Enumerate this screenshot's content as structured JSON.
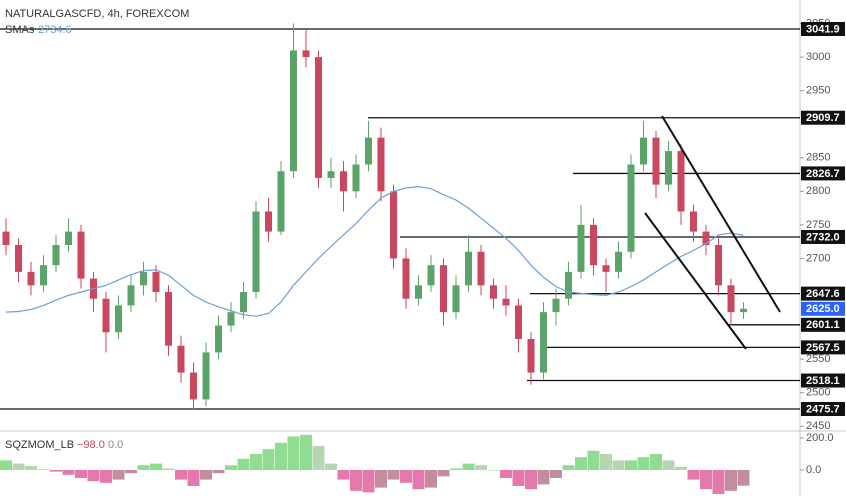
{
  "chart_data": {
    "type": "candlestick",
    "title": "NATURALGASCFD, 4h, FOREXCOM",
    "ylim": [
      2444.4,
      3085.1
    ],
    "yticks": [
      3050,
      3000,
      2950,
      2850,
      2800,
      2750,
      2700,
      2550,
      2500,
      2450
    ],
    "up_color": "#5aa469",
    "down_color": "#c9485f",
    "candles": [
      [
        2740,
        2760,
        2705,
        2720
      ],
      [
        2720,
        2730,
        2665,
        2680
      ],
      [
        2680,
        2695,
        2645,
        2660
      ],
      [
        2660,
        2705,
        2650,
        2690
      ],
      [
        2690,
        2735,
        2680,
        2720
      ],
      [
        2720,
        2760,
        2710,
        2740
      ],
      [
        2740,
        2750,
        2655,
        2670
      ],
      [
        2670,
        2680,
        2620,
        2640
      ],
      [
        2640,
        2650,
        2560,
        2590
      ],
      [
        2590,
        2645,
        2580,
        2630
      ],
      [
        2630,
        2675,
        2620,
        2660
      ],
      [
        2660,
        2695,
        2645,
        2680
      ],
      [
        2680,
        2690,
        2635,
        2650
      ],
      [
        2650,
        2660,
        2555,
        2570
      ],
      [
        2570,
        2585,
        2515,
        2530
      ],
      [
        2530,
        2545,
        2475,
        2490
      ],
      [
        2490,
        2575,
        2480,
        2560
      ],
      [
        2560,
        2615,
        2550,
        2600
      ],
      [
        2600,
        2635,
        2590,
        2620
      ],
      [
        2620,
        2665,
        2610,
        2650
      ],
      [
        2650,
        2785,
        2640,
        2770
      ],
      [
        2770,
        2790,
        2725,
        2740
      ],
      [
        2740,
        2845,
        2735,
        2830
      ],
      [
        2830,
        3050,
        2820,
        3010
      ],
      [
        3010,
        3040,
        2985,
        3000
      ],
      [
        3000,
        3010,
        2805,
        2820
      ],
      [
        2820,
        2850,
        2805,
        2830
      ],
      [
        2830,
        2845,
        2770,
        2800
      ],
      [
        2800,
        2855,
        2790,
        2840
      ],
      [
        2840,
        2905,
        2830,
        2880
      ],
      [
        2880,
        2895,
        2785,
        2800
      ],
      [
        2800,
        2810,
        2685,
        2700
      ],
      [
        2700,
        2715,
        2625,
        2640
      ],
      [
        2640,
        2675,
        2630,
        2660
      ],
      [
        2660,
        2705,
        2650,
        2690
      ],
      [
        2690,
        2700,
        2600,
        2620
      ],
      [
        2620,
        2675,
        2610,
        2660
      ],
      [
        2660,
        2735,
        2650,
        2710
      ],
      [
        2710,
        2720,
        2645,
        2660
      ],
      [
        2660,
        2670,
        2625,
        2640
      ],
      [
        2640,
        2660,
        2615,
        2630
      ],
      [
        2630,
        2640,
        2560,
        2580
      ],
      [
        2580,
        2590,
        2512,
        2530
      ],
      [
        2530,
        2635,
        2520,
        2620
      ],
      [
        2620,
        2655,
        2600,
        2640
      ],
      [
        2640,
        2695,
        2630,
        2680
      ],
      [
        2680,
        2780,
        2670,
        2750
      ],
      [
        2750,
        2760,
        2675,
        2690
      ],
      [
        2690,
        2700,
        2650,
        2680
      ],
      [
        2680,
        2725,
        2670,
        2710
      ],
      [
        2710,
        2855,
        2700,
        2840
      ],
      [
        2840,
        2905,
        2830,
        2880
      ],
      [
        2880,
        2890,
        2790,
        2810
      ],
      [
        2810,
        2875,
        2800,
        2860
      ],
      [
        2860,
        2870,
        2750,
        2770
      ],
      [
        2770,
        2780,
        2725,
        2740
      ],
      [
        2740,
        2750,
        2705,
        2720
      ],
      [
        2720,
        2730,
        2645,
        2660
      ],
      [
        2660,
        2670,
        2600,
        2620
      ],
      [
        2620,
        2635,
        2610,
        2625
      ]
    ],
    "sma": {
      "name": "SMAs",
      "color": "#6f9fd8",
      "values": [
        2620,
        2621,
        2624,
        2630,
        2638,
        2645,
        2650,
        2655,
        2660,
        2668,
        2676,
        2682,
        2683,
        2675,
        2660,
        2645,
        2635,
        2628,
        2622,
        2616,
        2614,
        2618,
        2635,
        2660,
        2680,
        2700,
        2718,
        2735,
        2752,
        2772,
        2790,
        2800,
        2805,
        2807,
        2804,
        2795,
        2787,
        2775,
        2760,
        2745,
        2730,
        2712,
        2690,
        2672,
        2658,
        2650,
        2648,
        2646,
        2645,
        2650,
        2658,
        2668,
        2680,
        2692,
        2703,
        2712,
        2722,
        2735,
        2738,
        2734.6
      ]
    },
    "levels": [
      3041.9,
      2909.7,
      2826.7,
      {
        "value": 2732,
        "label": "2732.0"
      },
      2647.6,
      2601.1,
      2567.5,
      2518.1,
      2475.7
    ],
    "last_price": {
      "value": 2625,
      "label": "2625.0",
      "color": "#2962ff"
    },
    "indicator": {
      "name": "SQZMOM_LB",
      "legend_values": [
        "−98.0",
        "0.0"
      ],
      "ylim": [
        -162.5,
        237.5
      ],
      "yticks": [
        {
          "value": 200,
          "label": "200.0"
        },
        {
          "value": 0,
          "label": "0.0"
        }
      ],
      "colors": [
        "#7cd67c",
        "#a9cfa3",
        "#e0609e",
        "#b9788e"
      ],
      "values": [
        60,
        40,
        25,
        5,
        -10,
        -30,
        -50,
        -70,
        -80,
        -60,
        -20,
        30,
        40,
        10,
        -60,
        -100,
        -60,
        -20,
        30,
        70,
        100,
        130,
        170,
        210,
        220,
        150,
        40,
        -60,
        -130,
        -140,
        -110,
        -60,
        -80,
        -120,
        -110,
        -40,
        10,
        40,
        30,
        0,
        -50,
        -100,
        -120,
        -90,
        -50,
        30,
        80,
        120,
        100,
        60,
        60,
        80,
        100,
        60,
        20,
        -60,
        -120,
        -150,
        -130,
        -98
      ]
    }
  }
}
